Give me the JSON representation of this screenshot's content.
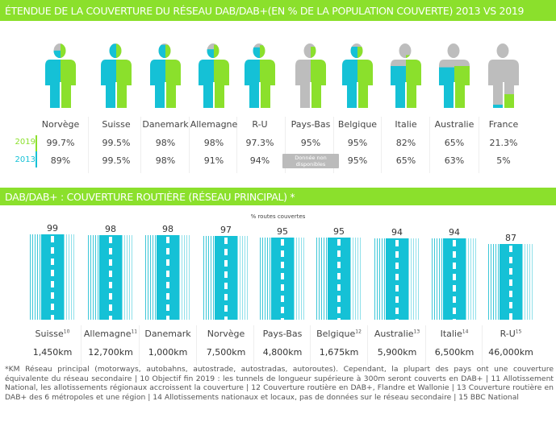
{
  "colors": {
    "banner": "#8be02c",
    "y2019": "#8be02c",
    "y2013": "#15c1d6",
    "grey": "#bdbdbd",
    "road": "#15c1d6"
  },
  "chart_data": [
    {
      "type": "pictogram",
      "title": "ÉTENDUE DE LA COUVERTURE DU RÉSEAU DAB/DAB+(EN % DE LA POPULATION COUVERTE) 2013 VS 2019",
      "categories": [
        "Norvège",
        "Suisse",
        "Danemark",
        "Allemagne",
        "R-U",
        "Pays-Bas",
        "Belgique",
        "Italie",
        "Australie",
        "France"
      ],
      "series": [
        {
          "name": "2019",
          "values": [
            99.7,
            99.5,
            98,
            98,
            97.3,
            95,
            95,
            82,
            65,
            21.3
          ],
          "labels": [
            "99.7%",
            "99.5%",
            "98%",
            "98%",
            "97.3%",
            "95%",
            "95%",
            "82%",
            "65%",
            "21.3%"
          ]
        },
        {
          "name": "2013",
          "values": [
            89,
            99.5,
            98,
            91,
            94,
            null,
            95,
            65,
            63,
            5
          ],
          "labels": [
            "89%",
            "99.5%",
            "98%",
            "91%",
            "94%",
            "Donnée non disponibles",
            "95%",
            "65%",
            "63%",
            "5%"
          ]
        }
      ]
    },
    {
      "type": "bar",
      "title": "DAB/DAB+ : COUVERTURE ROUTIÈRE (RÉSEAU PRINCIPAL) *",
      "ylabel": "% routes couvertes",
      "categories": [
        "Suisse",
        "Allemagne",
        "Danemark",
        "Norvège",
        "Pays-Bas",
        "Belgique",
        "Australie",
        "Italie",
        "R-U"
      ],
      "notes": [
        "10",
        "11",
        "",
        "",
        "",
        "12",
        "13",
        "14",
        "15"
      ],
      "values": [
        99,
        98,
        98,
        97,
        95,
        95,
        94,
        94,
        87
      ],
      "km": [
        "1,450km",
        "12,700km",
        "1,000km",
        "7,500km",
        "4,800km",
        "1,675km",
        "5,900km",
        "6,500km",
        "46,000km"
      ]
    }
  ],
  "footnote": "*KM Réseau principal (motorways, autobahns, autostrade, autostradas, autoroutes). Cependant, la plupart des pays ont une couverture équivalente du réseau secondaire    | 10 Objectif fin 2019 : les tunnels de longueur supérieure à 300m seront couverts en DAB+   |  11 Allotissement National, les allotissements régionaux accroissent la couverture | 12 Couverture routière en DAB+, Flandre et Wallonie |  13 Couverture routière en DAB+ des 6 métropoles et une région |  14 Allotissements nationaux et locaux, pas de données sur le réseau secondaire |  15 BBC National"
}
